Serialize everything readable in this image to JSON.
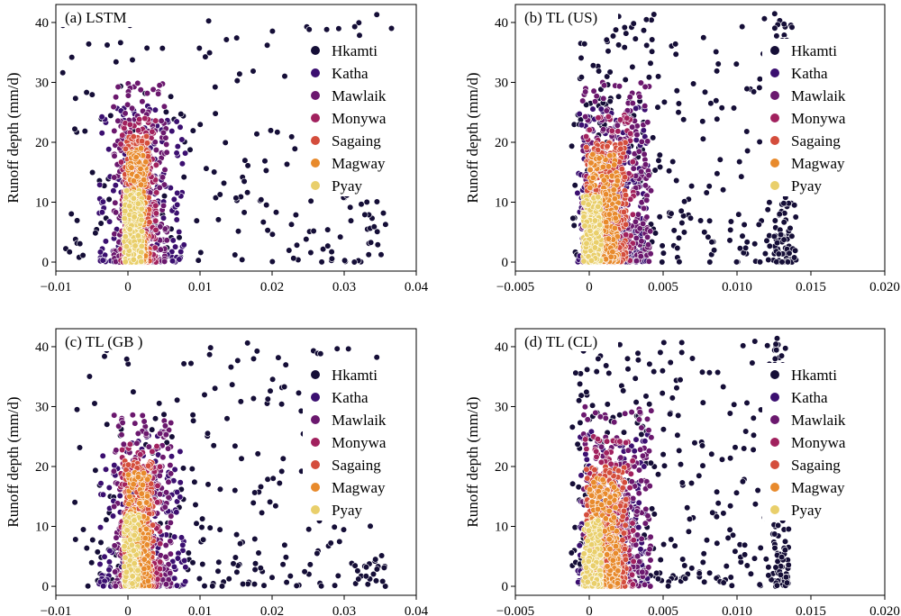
{
  "chart_data": [
    {
      "type": "scatter",
      "title": "(a) LSTM",
      "ylabel": "Runoff depth (mm/d)",
      "xlabel": "",
      "xlim": [
        -0.01,
        0.04
      ],
      "ylim": [
        -1.5,
        43
      ],
      "xticks": [
        -0.01,
        0,
        0.01,
        0.02,
        0.03,
        0.04
      ],
      "xtick_labels": [
        "−0.01",
        "0",
        "0.01",
        "0.02",
        "0.03",
        "0.04"
      ],
      "yticks": [
        0,
        10,
        20,
        30,
        40
      ],
      "ytick_labels": [
        "0",
        "10",
        "20",
        "30",
        "40"
      ],
      "legend_position": "upper-right",
      "series": [
        {
          "name": "Hkamti",
          "color": "#150e37",
          "spread": [
            [
              -0.0095,
              0.0085
            ],
            [
              0.0085,
              0.025
            ],
            [
              0.025,
              0.037
            ]
          ],
          "y": [
            0,
            41.5
          ],
          "count": 230
        },
        {
          "name": "Katha",
          "color": "#3b0f70",
          "spread": [
            [
              -0.004,
              0.008
            ]
          ],
          "y": [
            0,
            27
          ],
          "count": 200
        },
        {
          "name": "Mawlaik",
          "color": "#6b186e",
          "spread": [
            [
              -0.002,
              0.0055
            ]
          ],
          "y": [
            0,
            30
          ],
          "count": 240
        },
        {
          "name": "Monywa",
          "color": "#a1215e",
          "spread": [
            [
              -0.001,
              0.004
            ]
          ],
          "y": [
            0,
            24
          ],
          "count": 160
        },
        {
          "name": "Sagaing",
          "color": "#d44d3c",
          "spread": [
            [
              -0.0005,
              0.003
            ]
          ],
          "y": [
            0,
            21
          ],
          "count": 320
        },
        {
          "name": "Magway",
          "color": "#e88a2c",
          "spread": [
            [
              0,
              0.0025
            ]
          ],
          "y": [
            0,
            19
          ],
          "count": 260
        },
        {
          "name": "Pyay",
          "color": "#e9cf6b",
          "spread": [
            [
              -0.0005,
              0.002
            ]
          ],
          "y": [
            0,
            12
          ],
          "count": 220
        }
      ]
    },
    {
      "type": "scatter",
      "title": "(b) TL (US)",
      "ylabel": "Runoff depth (mm/d)",
      "xlabel": "",
      "xlim": [
        -0.005,
        0.02
      ],
      "ylim": [
        -1.5,
        43
      ],
      "xticks": [
        -0.005,
        0,
        0.005,
        0.01,
        0.015,
        0.02
      ],
      "xtick_labels": [
        "−0.005",
        "0",
        "0.005",
        "0.010",
        "0.015",
        "0.020"
      ],
      "yticks": [
        0,
        10,
        20,
        30,
        40
      ],
      "ytick_labels": [
        "0",
        "10",
        "20",
        "30",
        "40"
      ],
      "legend_position": "upper-right",
      "series": [
        {
          "name": "Hkamti",
          "color": "#150e37",
          "spread": [
            [
              -0.0012,
              0.004
            ],
            [
              0.004,
              0.0125
            ],
            [
              0.0125,
              0.014
            ]
          ],
          "y": [
            0,
            41.5
          ],
          "count": 420
        },
        {
          "name": "Katha",
          "color": "#3b0f70",
          "spread": [
            [
              -0.0008,
              0.004
            ]
          ],
          "y": [
            0,
            26
          ],
          "count": 220
        },
        {
          "name": "Mawlaik",
          "color": "#6b186e",
          "spread": [
            [
              -0.0005,
              0.0042
            ]
          ],
          "y": [
            0,
            30
          ],
          "count": 260
        },
        {
          "name": "Monywa",
          "color": "#a1215e",
          "spread": [
            [
              -0.0003,
              0.003
            ]
          ],
          "y": [
            0,
            25
          ],
          "count": 170
        },
        {
          "name": "Sagaing",
          "color": "#d44d3c",
          "spread": [
            [
              -0.0002,
              0.0025
            ]
          ],
          "y": [
            0,
            20
          ],
          "count": 340
        },
        {
          "name": "Magway",
          "color": "#e88a2c",
          "spread": [
            [
              0,
              0.002
            ]
          ],
          "y": [
            0,
            18
          ],
          "count": 270
        },
        {
          "name": "Pyay",
          "color": "#e9cf6b",
          "spread": [
            [
              -0.0004,
              0.0008
            ]
          ],
          "y": [
            0,
            11
          ],
          "count": 220
        }
      ]
    },
    {
      "type": "scatter",
      "title": "(c) TL (GB )",
      "ylabel": "Runoff depth (mm/d)",
      "xlabel": "",
      "xlim": [
        -0.01,
        0.04
      ],
      "ylim": [
        -1.5,
        43
      ],
      "xticks": [
        -0.01,
        0,
        0.01,
        0.02,
        0.03,
        0.04
      ],
      "xtick_labels": [
        "−0.01",
        "0",
        "0.01",
        "0.02",
        "0.03",
        "0.04"
      ],
      "yticks": [
        0,
        10,
        20,
        30,
        40
      ],
      "ytick_labels": [
        "0",
        "10",
        "20",
        "30",
        "40"
      ],
      "legend_position": "upper-right",
      "series": [
        {
          "name": "Hkamti",
          "color": "#150e37",
          "spread": [
            [
              -0.0075,
              0.01
            ],
            [
              0.01,
              0.024
            ],
            [
              0.024,
              0.036
            ]
          ],
          "y": [
            0,
            41.5
          ],
          "count": 260
        },
        {
          "name": "Katha",
          "color": "#3b0f70",
          "spread": [
            [
              -0.004,
              0.008
            ]
          ],
          "y": [
            0,
            26
          ],
          "count": 200
        },
        {
          "name": "Mawlaik",
          "color": "#6b186e",
          "spread": [
            [
              -0.002,
              0.006
            ]
          ],
          "y": [
            0,
            29
          ],
          "count": 240
        },
        {
          "name": "Monywa",
          "color": "#a1215e",
          "spread": [
            [
              -0.001,
              0.0045
            ]
          ],
          "y": [
            0,
            24
          ],
          "count": 160
        },
        {
          "name": "Sagaing",
          "color": "#d44d3c",
          "spread": [
            [
              -0.0005,
              0.0035
            ]
          ],
          "y": [
            0,
            21
          ],
          "count": 320
        },
        {
          "name": "Magway",
          "color": "#e88a2c",
          "spread": [
            [
              0,
              0.003
            ]
          ],
          "y": [
            0,
            19
          ],
          "count": 260
        },
        {
          "name": "Pyay",
          "color": "#e9cf6b",
          "spread": [
            [
              -0.0005,
              0.0015
            ]
          ],
          "y": [
            0,
            12
          ],
          "count": 220
        }
      ]
    },
    {
      "type": "scatter",
      "title": "(d) TL (CL)",
      "ylabel": "Runoff depth (mm/d)",
      "xlabel": "",
      "xlim": [
        -0.005,
        0.02
      ],
      "ylim": [
        -1.5,
        43
      ],
      "xticks": [
        -0.005,
        0,
        0.005,
        0.01,
        0.015,
        0.02
      ],
      "xtick_labels": [
        "−0.005",
        "0",
        "0.005",
        "0.010",
        "0.015",
        "0.020"
      ],
      "yticks": [
        0,
        10,
        20,
        30,
        40
      ],
      "ytick_labels": [
        "0",
        "10",
        "20",
        "30",
        "40"
      ],
      "legend_position": "upper-right",
      "series": [
        {
          "name": "Hkamti",
          "color": "#150e37",
          "spread": [
            [
              -0.0012,
              0.004
            ],
            [
              0.004,
              0.0125
            ],
            [
              0.0125,
              0.0135
            ]
          ],
          "y": [
            0,
            41.5
          ],
          "count": 420
        },
        {
          "name": "Katha",
          "color": "#3b0f70",
          "spread": [
            [
              -0.0008,
              0.004
            ]
          ],
          "y": [
            0,
            26
          ],
          "count": 220
        },
        {
          "name": "Mawlaik",
          "color": "#6b186e",
          "spread": [
            [
              -0.0005,
              0.0042
            ]
          ],
          "y": [
            0,
            30
          ],
          "count": 260
        },
        {
          "name": "Monywa",
          "color": "#a1215e",
          "spread": [
            [
              -0.0003,
              0.003
            ]
          ],
          "y": [
            0,
            25
          ],
          "count": 170
        },
        {
          "name": "Sagaing",
          "color": "#d44d3c",
          "spread": [
            [
              -0.0002,
              0.0025
            ]
          ],
          "y": [
            0,
            20
          ],
          "count": 340
        },
        {
          "name": "Magway",
          "color": "#e88a2c",
          "spread": [
            [
              0,
              0.002
            ]
          ],
          "y": [
            0,
            18
          ],
          "count": 270
        },
        {
          "name": "Pyay",
          "color": "#e9cf6b",
          "spread": [
            [
              -0.0004,
              0.0008
            ]
          ],
          "y": [
            0,
            11
          ],
          "count": 220
        }
      ]
    }
  ]
}
